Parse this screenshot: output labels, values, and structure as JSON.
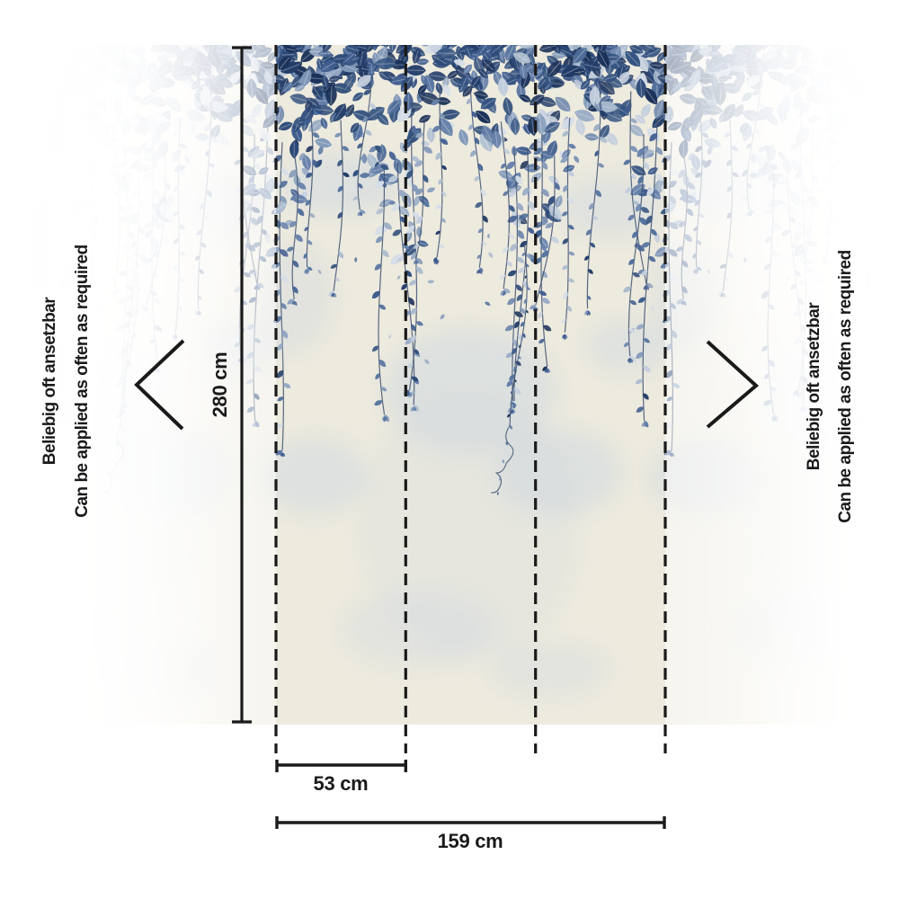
{
  "diagram": {
    "height_label": "280 cm",
    "panel_width_label": "53 cm",
    "total_width_label": "159 cm",
    "side_note_de": "Beliebig oft ansetzbar",
    "side_note_en": "Can be applied as often as required"
  },
  "colors": {
    "annotation": "#1a1a1a",
    "wall_base": "#edeade",
    "mottle": "#cdd7e0",
    "stem": "#3d506e",
    "leaf_dark": [
      "#1b3158",
      "#223c68",
      "#2a4876",
      "#33527f"
    ],
    "leaf_mid": [
      "#3f5c8e",
      "#52709c",
      "#6781aa",
      "#8097b8"
    ],
    "leaf_light": [
      "#97aac4",
      "#abbccf",
      "#c3cedd",
      "#d5dde7"
    ]
  }
}
